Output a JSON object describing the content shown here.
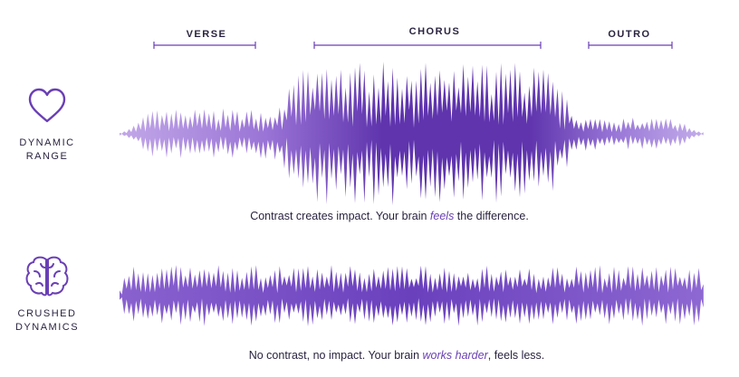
{
  "sections": [
    {
      "label": "VERSE"
    },
    {
      "label": "CHORUS"
    },
    {
      "label": "OUTRO"
    }
  ],
  "rows": [
    {
      "label_lines": [
        "DYNAMIC",
        "RANGE"
      ],
      "caption": [
        "Contrast creates impact. Your brain ",
        "feels",
        " the difference."
      ]
    },
    {
      "label_lines": [
        "CRUSHED",
        "DYNAMICS"
      ],
      "caption": [
        "No contrast, no impact. Your brain ",
        "works harder",
        ", feels less."
      ]
    }
  ]
}
